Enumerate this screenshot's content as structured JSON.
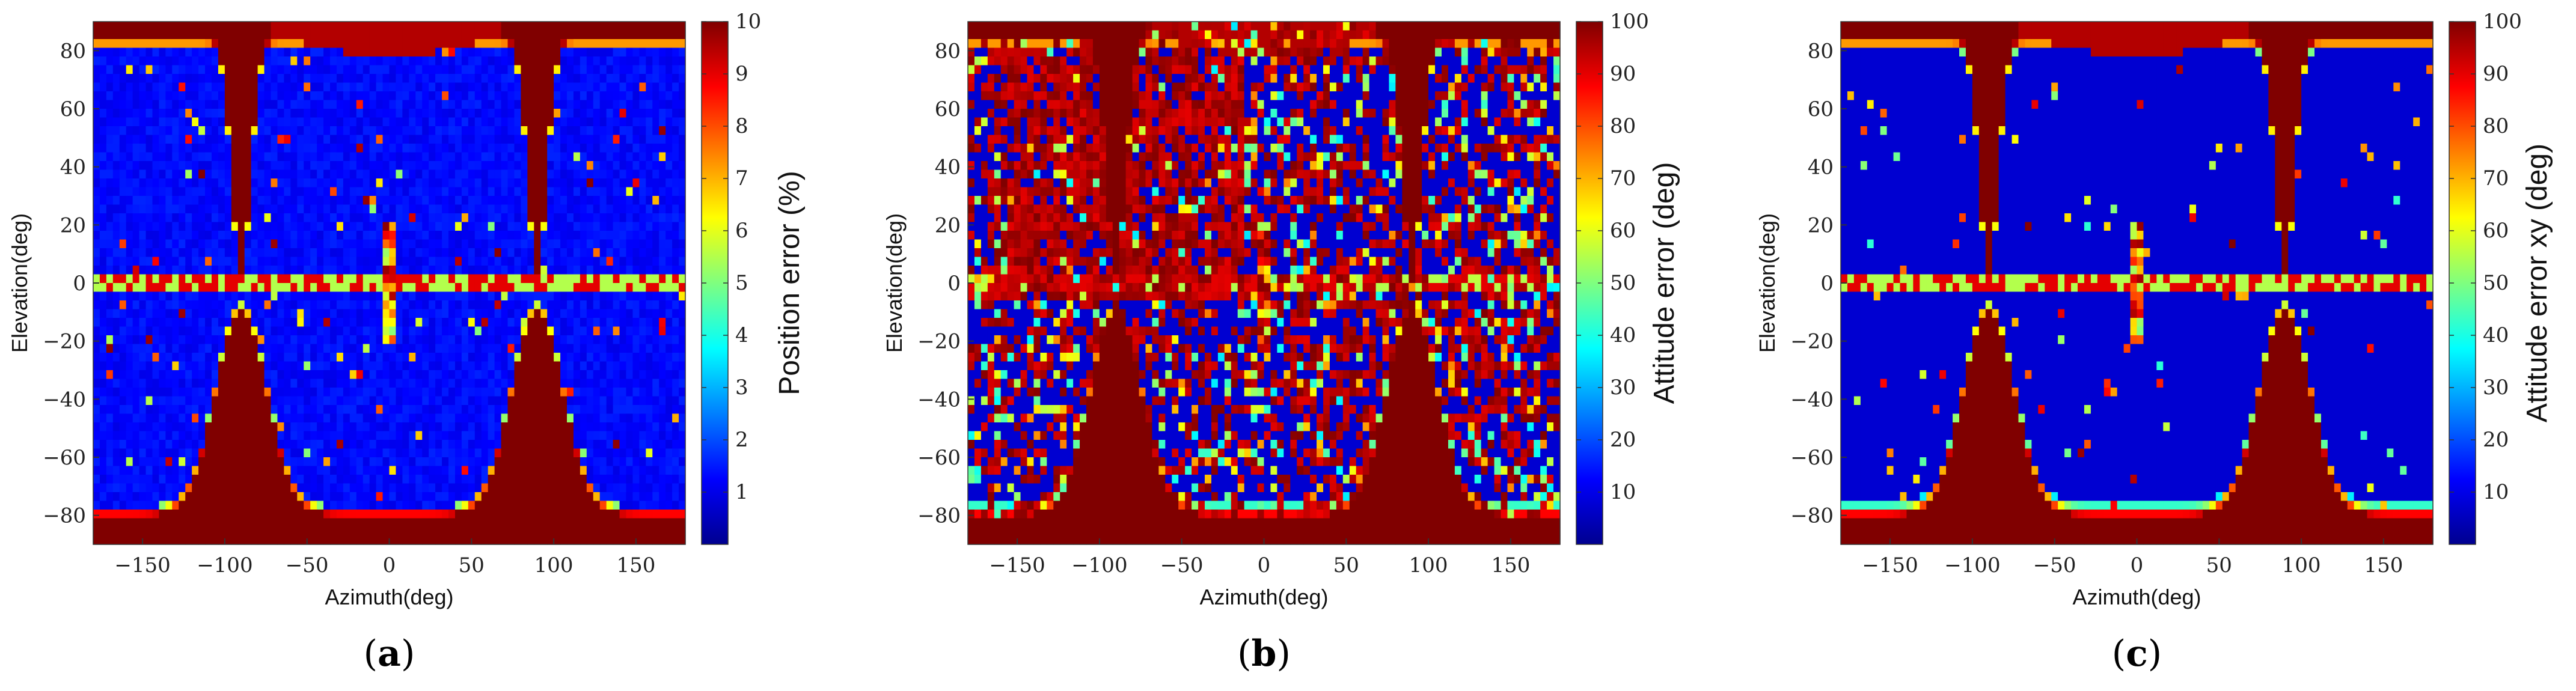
{
  "figure": {
    "panels": [
      {
        "id": "a",
        "caption_open": "(",
        "caption_letter": "a",
        "caption_close": ")",
        "colorbar_label": "Position error (%)",
        "colorbar_ticks": [
          "1",
          "2",
          "3",
          "4",
          "5",
          "6",
          "7",
          "8",
          "9",
          "10"
        ]
      },
      {
        "id": "b",
        "caption_open": "(",
        "caption_letter": "b",
        "caption_close": ")",
        "colorbar_label": "Attitude error (deg)",
        "colorbar_ticks": [
          "10",
          "20",
          "30",
          "40",
          "50",
          "60",
          "70",
          "80",
          "90",
          "100"
        ]
      },
      {
        "id": "c",
        "caption_open": "(",
        "caption_letter": "c",
        "caption_close": ")",
        "colorbar_label": "Attitude error xy (deg)",
        "colorbar_ticks": [
          "10",
          "20",
          "30",
          "40",
          "50",
          "60",
          "70",
          "80",
          "90",
          "100"
        ]
      }
    ]
  },
  "chart_data": [
    {
      "type": "heatmap",
      "xlabel": "Azimuth(deg)",
      "ylabel": "Elevation(deg)",
      "xlim": [
        -180,
        180
      ],
      "ylim": [
        -90,
        90
      ],
      "x_ticks": [
        -150,
        -100,
        -50,
        0,
        50,
        100,
        150
      ],
      "y_ticks": [
        -80,
        -60,
        -40,
        -20,
        0,
        20,
        40,
        60,
        80
      ],
      "colorbar": {
        "label": "Position error (%)",
        "range": [
          0,
          10
        ],
        "ticks": [
          1,
          2,
          3,
          4,
          5,
          6,
          7,
          8,
          9,
          10
        ],
        "colormap": "jet"
      },
      "description_values": {
        "low_region_value": 1,
        "high_region_value": 10,
        "noise_fraction": 0.04
      }
    },
    {
      "type": "heatmap",
      "xlabel": "Azimuth(deg)",
      "ylabel": "Elevation(deg)",
      "xlim": [
        -180,
        180
      ],
      "ylim": [
        -90,
        90
      ],
      "x_ticks": [
        -150,
        -100,
        -50,
        0,
        50,
        100,
        150
      ],
      "y_ticks": [
        -80,
        -60,
        -40,
        -20,
        0,
        20,
        40,
        60,
        80
      ],
      "colorbar": {
        "label": "Attitude error (deg)",
        "range": [
          0,
          100
        ],
        "ticks": [
          10,
          20,
          30,
          40,
          50,
          60,
          70,
          80,
          90,
          100
        ],
        "colormap": "jet"
      },
      "description_values": {
        "low_region_value": 10,
        "high_region_value": 100,
        "noise_fraction": 0.35
      }
    },
    {
      "type": "heatmap",
      "xlabel": "Azimuth(deg)",
      "ylabel": "Elevation(deg)",
      "xlim": [
        -180,
        180
      ],
      "ylim": [
        -90,
        90
      ],
      "x_ticks": [
        -150,
        -100,
        -50,
        0,
        50,
        100,
        150
      ],
      "y_ticks": [
        -80,
        -60,
        -40,
        -20,
        0,
        20,
        40,
        60,
        80
      ],
      "colorbar": {
        "label": "Attitude error xy (deg)",
        "range": [
          0,
          100
        ],
        "ticks": [
          10,
          20,
          30,
          40,
          50,
          60,
          70,
          80,
          90,
          100
        ],
        "colormap": "jet"
      },
      "description_values": {
        "low_region_value": 5,
        "high_region_value": 100,
        "noise_fraction": 0.03
      }
    }
  ]
}
